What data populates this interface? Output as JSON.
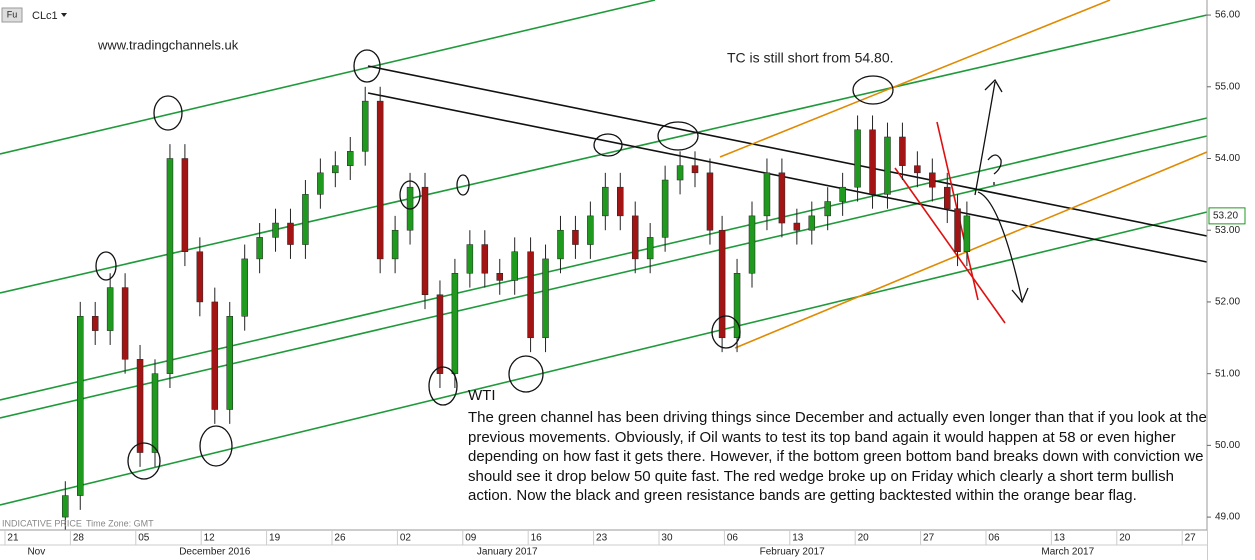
{
  "chart_data": {
    "type": "candlestick",
    "badge": "Fu",
    "symbol": "CLc1",
    "website": "www.tradingchannels.uk",
    "note": "TC is still short from 54.80.",
    "heading": "WTI",
    "body": "The green channel has been driving things since December and actually even longer than that if you look at the previous movements. Obviously, if Oil wants to test its top band again it would happen at 58 or even higher depending on how fast it gets there. However, if the bottom green bottom band breaks down with conviction we should see it drop below 50 quite fast. The red wedge broke up on Friday which clearly a short term bullish action. Now the black and green resistance bands are getting backtested within the orange bear flag.",
    "indicative": "INDICATIVE PRICE",
    "timezone": "Time Zone: GMT",
    "up_color": "#1f9a1f",
    "down_color": "#a31515",
    "x": [
      5.6,
      7.2,
      8.8,
      10.4,
      12.0,
      13.6,
      15.2,
      16.8,
      18.4,
      20.0,
      21.6,
      23.2,
      24.8,
      26.4,
      28.1,
      29.7,
      31.3,
      32.9,
      34.5,
      36.1,
      37.7,
      39.3,
      40.9,
      42.5,
      44.1,
      45.7,
      47.3,
      48.9,
      50.5,
      52.1,
      53.7,
      55.4,
      57.0,
      58.6,
      60.2,
      61.8,
      63.4,
      65.0,
      66.6,
      68.2,
      69.8,
      71.4,
      73.0,
      74.6,
      75.9,
      77.5,
      79.1,
      80.7,
      82.3,
      83.9,
      85.5,
      87.2,
      88.8,
      90.4,
      92.0,
      93.6,
      95.2,
      96.8,
      98.4,
      100.0,
      101.1,
      102.1
    ],
    "open": [
      49.0,
      49.3,
      51.8,
      51.6,
      52.2,
      51.2,
      49.9,
      51.0,
      54.0,
      52.7,
      52.0,
      50.5,
      51.8,
      52.6,
      52.9,
      53.1,
      52.8,
      53.5,
      53.8,
      53.9,
      54.1,
      54.8,
      52.6,
      53.0,
      53.6,
      52.1,
      51.0,
      52.4,
      52.8,
      52.4,
      52.3,
      52.7,
      51.5,
      52.6,
      53.0,
      52.8,
      53.2,
      53.6,
      53.2,
      52.6,
      52.9,
      53.7,
      53.9,
      53.8,
      53.0,
      51.5,
      52.4,
      53.2,
      53.8,
      53.1,
      53.0,
      53.2,
      53.4,
      53.6,
      54.4,
      53.5,
      54.3,
      53.9,
      53.8,
      53.6,
      53.3,
      52.7
    ],
    "high": [
      49.5,
      52.0,
      52.0,
      52.4,
      52.4,
      51.4,
      51.2,
      54.2,
      54.2,
      52.9,
      52.2,
      52.0,
      52.8,
      53.1,
      53.3,
      53.3,
      53.7,
      54.0,
      54.1,
      54.3,
      55.0,
      55.0,
      53.2,
      53.8,
      53.8,
      52.3,
      52.6,
      53.0,
      53.0,
      52.6,
      52.9,
      52.9,
      52.8,
      53.2,
      53.2,
      53.4,
      53.8,
      53.8,
      53.4,
      53.1,
      53.9,
      54.1,
      54.1,
      54.0,
      53.2,
      52.6,
      53.4,
      54.0,
      54.0,
      53.3,
      53.4,
      53.6,
      53.8,
      54.6,
      54.6,
      54.5,
      54.5,
      54.1,
      54.0,
      53.8,
      53.5,
      53.4
    ],
    "low": [
      48.8,
      49.1,
      51.4,
      51.4,
      51.0,
      49.7,
      49.7,
      50.8,
      52.5,
      51.8,
      50.3,
      50.3,
      51.6,
      52.4,
      52.7,
      52.6,
      52.6,
      53.3,
      53.6,
      53.7,
      53.9,
      52.4,
      52.4,
      52.8,
      51.9,
      50.8,
      50.8,
      52.2,
      52.2,
      52.1,
      52.1,
      51.3,
      51.3,
      52.4,
      52.6,
      52.6,
      53.0,
      53.0,
      52.4,
      52.4,
      52.7,
      53.5,
      53.6,
      52.8,
      51.3,
      51.3,
      52.2,
      53.0,
      52.9,
      52.8,
      52.8,
      53.0,
      53.2,
      53.4,
      53.3,
      53.3,
      53.7,
      53.6,
      53.4,
      53.1,
      52.5,
      52.5
    ],
    "close": [
      49.3,
      51.8,
      51.6,
      52.2,
      51.2,
      49.9,
      51.0,
      54.0,
      52.7,
      52.0,
      50.5,
      51.8,
      52.6,
      52.9,
      53.1,
      52.8,
      53.5,
      53.8,
      53.9,
      54.1,
      54.8,
      52.6,
      53.0,
      53.6,
      52.1,
      51.0,
      52.4,
      52.8,
      52.4,
      52.3,
      52.7,
      51.5,
      52.6,
      53.0,
      52.8,
      53.2,
      53.6,
      53.2,
      52.6,
      52.9,
      53.7,
      53.9,
      53.8,
      53.0,
      51.5,
      52.4,
      53.2,
      53.8,
      53.1,
      53.0,
      53.2,
      53.4,
      53.6,
      54.4,
      53.5,
      54.3,
      53.9,
      53.8,
      53.6,
      53.3,
      52.7,
      53.2
    ],
    "xlim": [
      -1.39,
      127.8
    ],
    "ylim": [
      48.82,
      56.21
    ],
    "yticks": [
      {
        "value": 49,
        "label": "49.00"
      },
      {
        "value": 50,
        "label": "50.00"
      },
      {
        "value": 51,
        "label": "51.00"
      },
      {
        "value": 52,
        "label": "52.00"
      },
      {
        "value": 53,
        "label": "53.00"
      },
      {
        "value": 54,
        "label": "54.00"
      },
      {
        "value": 55,
        "label": "55.00"
      },
      {
        "value": 56,
        "label": "56.00"
      }
    ],
    "xticks": [
      {
        "value": 0,
        "label": "21"
      },
      {
        "value": 7,
        "label": "28"
      },
      {
        "value": 14,
        "label": "05"
      },
      {
        "value": 21,
        "label": "12"
      },
      {
        "value": 28,
        "label": "19"
      },
      {
        "value": 35,
        "label": "26"
      },
      {
        "value": 42,
        "label": "02"
      },
      {
        "value": 49,
        "label": "09"
      },
      {
        "value": 56,
        "label": "16"
      },
      {
        "value": 63,
        "label": "23"
      },
      {
        "value": 70,
        "label": "30"
      },
      {
        "value": 77,
        "label": "06"
      },
      {
        "value": 84,
        "label": "13"
      },
      {
        "value": 91,
        "label": "20"
      },
      {
        "value": 98,
        "label": "27"
      },
      {
        "value": 105,
        "label": "06"
      },
      {
        "value": 112,
        "label": "13"
      },
      {
        "value": 119,
        "label": "20"
      },
      {
        "value": 126,
        "label": "27"
      }
    ],
    "month_labels": [
      {
        "value": 2.5,
        "label": "Nov"
      },
      {
        "value": 21.6,
        "label": "December 2016"
      },
      {
        "value": 52.9,
        "label": "January 2017"
      },
      {
        "value": 83.4,
        "label": "February 2017"
      },
      {
        "value": 112.9,
        "label": "March 2017"
      }
    ],
    "last_price": {
      "value": 53.2,
      "label": "53.20"
    }
  }
}
